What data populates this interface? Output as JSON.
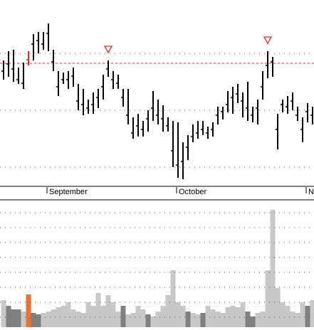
{
  "chart_data": [
    {
      "type": "hlc",
      "categories": [
        null,
        null,
        null,
        null,
        null,
        null,
        null,
        null,
        null,
        "September",
        null,
        null,
        null,
        null,
        null,
        null,
        null,
        null,
        null,
        null,
        null,
        null,
        null,
        null,
        null,
        null,
        null,
        null,
        null,
        null,
        null,
        null,
        null,
        null,
        null,
        "October",
        null,
        null,
        null,
        null,
        null,
        null,
        null,
        null,
        null,
        null,
        null,
        null,
        null,
        null,
        null,
        null,
        null,
        null,
        null,
        null,
        null,
        null,
        null,
        null,
        null,
        "No",
        null
      ],
      "high": [
        177,
        190,
        192,
        167,
        174,
        190,
        214,
        217,
        217,
        229,
        192,
        162,
        160,
        162,
        167,
        144,
        137,
        122,
        132,
        137,
        157,
        177,
        162,
        157,
        137,
        137,
        97,
        102,
        92,
        107,
        134,
        122,
        114,
        97,
        92,
        90,
        62,
        72,
        87,
        92,
        92,
        84,
        90,
        112,
        112,
        134,
        140,
        144,
        132,
        147,
        112,
        122,
        162,
        190,
        182,
        102,
        122,
        127,
        132,
        112,
        97,
        117,
        112
      ],
      "low": [
        150,
        154,
        147,
        144,
        137,
        170,
        177,
        187,
        192,
        190,
        162,
        127,
        144,
        137,
        140,
        107,
        100,
        102,
        102,
        110,
        122,
        154,
        137,
        137,
        112,
        87,
        67,
        70,
        70,
        77,
        92,
        87,
        77,
        77,
        27,
        12,
        10,
        37,
        62,
        67,
        72,
        67,
        70,
        87,
        94,
        104,
        102,
        117,
        97,
        92,
        90,
        87,
        122,
        152,
        154,
        52,
        104,
        102,
        107,
        92,
        62,
        90,
        87
      ],
      "close": [
        162,
        172,
        165,
        150,
        145,
        178,
        200,
        205,
        200,
        215,
        175,
        140,
        150,
        150,
        155,
        120,
        115,
        110,
        115,
        125,
        140,
        165,
        150,
        145,
        125,
        100,
        75,
        85,
        80,
        95,
        110,
        100,
        95,
        85,
        50,
        30,
        35,
        55,
        70,
        75,
        80,
        75,
        80,
        100,
        105,
        115,
        125,
        130,
        120,
        110,
        100,
        110,
        140,
        170,
        175,
        80,
        115,
        112,
        120,
        100,
        80,
        105,
        100
      ],
      "color": "#000000",
      "highlight": 5,
      "highlight_color": "#d03030",
      "reference_line": 173,
      "reference_color": "#d03030",
      "markers": [
        21,
        53
      ],
      "marker_color": "#d03030",
      "ylim": [
        0,
        262
      ],
      "ygrid": [
        27,
        107,
        187
      ]
    },
    {
      "type": "volume",
      "values": [
        38,
        30,
        25,
        25,
        22,
        46,
        20,
        18,
        20,
        22,
        25,
        28,
        30,
        35,
        25,
        22,
        20,
        35,
        30,
        48,
        30,
        45,
        35,
        22,
        30,
        18,
        20,
        30,
        25,
        18,
        15,
        22,
        30,
        45,
        80,
        35,
        30,
        22,
        20,
        18,
        20,
        30,
        25,
        22,
        20,
        28,
        30,
        28,
        35,
        22,
        15,
        20,
        22,
        80,
        165,
        55,
        35,
        30,
        22,
        20,
        35,
        30,
        38
      ],
      "colors": [
        "#c8c8c8",
        "#808080",
        "#808080",
        "#808080",
        "#c8c8c8",
        "#f07030",
        "#808080",
        "#808080",
        "#c8c8c8",
        "#c8c8c8",
        "#c8c8c8",
        "#c8c8c8",
        "#c8c8c8",
        "#c8c8c8",
        "#c8c8c8",
        "#c8c8c8",
        "#c8c8c8",
        "#c8c8c8",
        "#c8c8c8",
        "#c8c8c8",
        "#c8c8c8",
        "#c8c8c8",
        "#c8c8c8",
        "#c8c8c8",
        "#808080",
        "#c8c8c8",
        "#c8c8c8",
        "#c8c8c8",
        "#c8c8c8",
        "#808080",
        "#c8c8c8",
        "#c8c8c8",
        "#c8c8c8",
        "#c8c8c8",
        "#c8c8c8",
        "#c8c8c8",
        "#c8c8c8",
        "#808080",
        "#c8c8c8",
        "#c8c8c8",
        "#808080",
        "#c8c8c8",
        "#c8c8c8",
        "#c8c8c8",
        "#c8c8c8",
        "#c8c8c8",
        "#c8c8c8",
        "#c8c8c8",
        "#c8c8c8",
        "#808080",
        "#808080",
        "#c8c8c8",
        "#c8c8c8",
        "#c8c8c8",
        "#c8c8c8",
        "#c8c8c8",
        "#c8c8c8",
        "#c8c8c8",
        "#c8c8c8",
        "#c8c8c8",
        "#c8c8c8",
        "#808080",
        "#c8c8c8"
      ],
      "ylim": [
        0,
        178
      ],
      "ygrid": [
        14,
        35,
        56,
        77,
        98,
        119,
        140,
        161
      ]
    }
  ]
}
